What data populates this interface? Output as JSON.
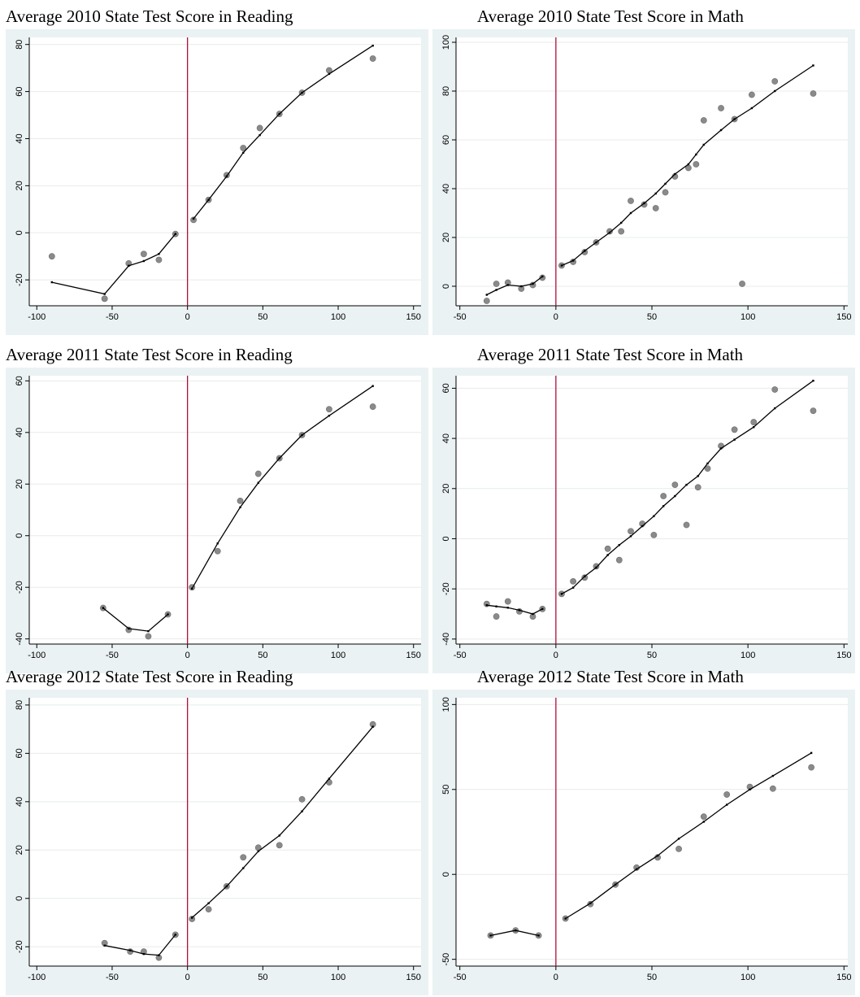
{
  "chart_data": [
    {
      "type": "scatter",
      "title": "Average 2010 State Test Score in Reading",
      "xlim": [
        -105,
        155
      ],
      "ylim": [
        -31,
        83
      ],
      "xticks": [
        -100,
        -50,
        0,
        50,
        100,
        150
      ],
      "yticks": [
        -20,
        0,
        20,
        40,
        60,
        80
      ],
      "cutoff": 0,
      "points": [
        [
          -90,
          -10
        ],
        [
          -55,
          -28
        ],
        [
          -39,
          -13
        ],
        [
          -29,
          -9
        ],
        [
          -19,
          -11.5
        ],
        [
          -8,
          -0.5
        ],
        [
          4,
          5.5
        ],
        [
          14,
          14
        ],
        [
          26,
          24.5
        ],
        [
          37,
          36
        ],
        [
          48,
          44.5
        ],
        [
          61,
          50.5
        ],
        [
          76,
          59.5
        ],
        [
          94,
          69
        ],
        [
          123,
          74
        ]
      ],
      "left_fit": [
        [
          -90,
          -21
        ],
        [
          -55,
          -26
        ],
        [
          -39,
          -14
        ],
        [
          -29,
          -12
        ],
        [
          -19,
          -9
        ],
        [
          -8,
          -0.5
        ]
      ],
      "right_fit": [
        [
          4,
          6
        ],
        [
          14,
          14
        ],
        [
          26,
          24
        ],
        [
          37,
          34
        ],
        [
          48,
          41.5
        ],
        [
          61,
          50.5
        ],
        [
          76,
          59.5
        ],
        [
          94,
          67.5
        ],
        [
          123,
          79.5
        ]
      ]
    },
    {
      "type": "scatter",
      "title": "Average 2010 State Test Score in Math",
      "xlim": [
        -52,
        152
      ],
      "ylim": [
        -8,
        102
      ],
      "xticks": [
        -50,
        0,
        50,
        100,
        150
      ],
      "yticks": [
        0,
        20,
        40,
        60,
        80,
        100
      ],
      "cutoff": 0,
      "points": [
        [
          -36,
          -6
        ],
        [
          -31,
          1
        ],
        [
          -25,
          1.5
        ],
        [
          -18,
          -1
        ],
        [
          -12,
          0.5
        ],
        [
          -7,
          3.5
        ],
        [
          3,
          8.5
        ],
        [
          9,
          10
        ],
        [
          15,
          14
        ],
        [
          21,
          18
        ],
        [
          28,
          22.5
        ],
        [
          34,
          22.5
        ],
        [
          39,
          35
        ],
        [
          46,
          33.5
        ],
        [
          52,
          32
        ],
        [
          57,
          38.5
        ],
        [
          62,
          45
        ],
        [
          69,
          48.5
        ],
        [
          73,
          50
        ],
        [
          77,
          68
        ],
        [
          86,
          73
        ],
        [
          93,
          68.5
        ],
        [
          97,
          1
        ],
        [
          102,
          78.5
        ],
        [
          114,
          84
        ],
        [
          134,
          79
        ]
      ],
      "left_fit": [
        [
          -36,
          -3.5
        ],
        [
          -31,
          -1.5
        ],
        [
          -25,
          0.5
        ],
        [
          -18,
          0
        ],
        [
          -12,
          1
        ],
        [
          -7,
          4
        ]
      ],
      "right_fit": [
        [
          3,
          8.5
        ],
        [
          9,
          10.5
        ],
        [
          15,
          14.5
        ],
        [
          21,
          18
        ],
        [
          28,
          22
        ],
        [
          34,
          26
        ],
        [
          39,
          30
        ],
        [
          46,
          34
        ],
        [
          52,
          38
        ],
        [
          57,
          42
        ],
        [
          62,
          46
        ],
        [
          69,
          50
        ],
        [
          73,
          54
        ],
        [
          77,
          58
        ],
        [
          86,
          64
        ],
        [
          93,
          68.5
        ],
        [
          102,
          73
        ],
        [
          114,
          80
        ],
        [
          134,
          90.5
        ]
      ]
    },
    {
      "type": "scatter",
      "title": "Average 2011 State Test Score in Reading",
      "xlim": [
        -105,
        155
      ],
      "ylim": [
        -42,
        62
      ],
      "xticks": [
        -100,
        -50,
        0,
        50,
        100,
        150
      ],
      "yticks": [
        -40,
        -20,
        0,
        20,
        40,
        60
      ],
      "cutoff": 0,
      "points": [
        [
          -56,
          -28
        ],
        [
          -39,
          -36.5
        ],
        [
          -26,
          -39
        ],
        [
          -13,
          -30.5
        ],
        [
          3,
          -20
        ],
        [
          20,
          -6
        ],
        [
          35,
          13.5
        ],
        [
          47,
          24
        ],
        [
          61,
          30
        ],
        [
          76,
          39
        ],
        [
          94,
          49
        ],
        [
          123,
          50
        ]
      ],
      "left_fit": [
        [
          -56,
          -28
        ],
        [
          -39,
          -36
        ],
        [
          -26,
          -37
        ],
        [
          -13,
          -30.5
        ]
      ],
      "right_fit": [
        [
          3,
          -20.5
        ],
        [
          20,
          -3
        ],
        [
          35,
          11
        ],
        [
          47,
          20.5
        ],
        [
          61,
          30
        ],
        [
          76,
          39
        ],
        [
          94,
          46.5
        ],
        [
          123,
          58
        ]
      ]
    },
    {
      "type": "scatter",
      "title": "Average 2011 State Test Score in Math",
      "xlim": [
        -52,
        152
      ],
      "ylim": [
        -42,
        65
      ],
      "xticks": [
        -50,
        0,
        50,
        100,
        150
      ],
      "yticks": [
        -40,
        -20,
        0,
        20,
        40,
        60
      ],
      "cutoff": 0,
      "points": [
        [
          -36,
          -26
        ],
        [
          -31,
          -31
        ],
        [
          -25,
          -25
        ],
        [
          -19,
          -29
        ],
        [
          -12,
          -31
        ],
        [
          -7,
          -28
        ],
        [
          3,
          -22
        ],
        [
          9,
          -17
        ],
        [
          15,
          -15.5
        ],
        [
          21,
          -11
        ],
        [
          27,
          -4
        ],
        [
          33,
          -8.5
        ],
        [
          39,
          3
        ],
        [
          45,
          6
        ],
        [
          51,
          1.5
        ],
        [
          56,
          17
        ],
        [
          62,
          21.5
        ],
        [
          68,
          5.5
        ],
        [
          74,
          20.5
        ],
        [
          79,
          28
        ],
        [
          86,
          37
        ],
        [
          93,
          43.5
        ],
        [
          103,
          46.5
        ],
        [
          114,
          59.5
        ],
        [
          134,
          51
        ]
      ],
      "left_fit": [
        [
          -36,
          -26.5
        ],
        [
          -31,
          -27
        ],
        [
          -25,
          -27.5
        ],
        [
          -19,
          -28.5
        ],
        [
          -12,
          -30
        ],
        [
          -7,
          -28
        ]
      ],
      "right_fit": [
        [
          3,
          -22
        ],
        [
          9,
          -19.5
        ],
        [
          15,
          -15
        ],
        [
          21,
          -11.5
        ],
        [
          27,
          -6.5
        ],
        [
          33,
          -2.5
        ],
        [
          39,
          1
        ],
        [
          45,
          5
        ],
        [
          51,
          9
        ],
        [
          56,
          13
        ],
        [
          62,
          17
        ],
        [
          68,
          21.5
        ],
        [
          74,
          25
        ],
        [
          79,
          30
        ],
        [
          86,
          36
        ],
        [
          93,
          39.5
        ],
        [
          103,
          44.5
        ],
        [
          114,
          52
        ],
        [
          134,
          63
        ]
      ]
    },
    {
      "type": "scatter",
      "title": "Average 2012 State Test Score in Reading",
      "xlim": [
        -105,
        155
      ],
      "ylim": [
        -28,
        83
      ],
      "xticks": [
        -100,
        -50,
        0,
        50,
        100,
        150
      ],
      "yticks": [
        -20,
        0,
        20,
        40,
        60,
        80
      ],
      "cutoff": 0,
      "points": [
        [
          -55,
          -18.5
        ],
        [
          -38,
          -22
        ],
        [
          -29,
          -22
        ],
        [
          -19,
          -24.5
        ],
        [
          -8,
          -15
        ],
        [
          3,
          -8.5
        ],
        [
          14,
          -4.5
        ],
        [
          26,
          5
        ],
        [
          37,
          17
        ],
        [
          47,
          21
        ],
        [
          61,
          22
        ],
        [
          76,
          41
        ],
        [
          94,
          48
        ],
        [
          123,
          72
        ]
      ],
      "left_fit": [
        [
          -55,
          -19.5
        ],
        [
          -38,
          -21.5
        ],
        [
          -29,
          -23
        ],
        [
          -19,
          -23.5
        ],
        [
          -8,
          -15
        ]
      ],
      "right_fit": [
        [
          3,
          -8
        ],
        [
          14,
          -2
        ],
        [
          26,
          5
        ],
        [
          37,
          12.5
        ],
        [
          47,
          19.5
        ],
        [
          61,
          26
        ],
        [
          76,
          36
        ],
        [
          94,
          49.5
        ],
        [
          123,
          71
        ]
      ]
    },
    {
      "type": "scatter",
      "title": "Average 2012 State Test Score in Math",
      "xlim": [
        -52,
        152
      ],
      "ylim": [
        -54,
        104
      ],
      "xticks": [
        -50,
        0,
        50,
        100,
        150
      ],
      "yticks": [
        -50,
        0,
        50,
        100
      ],
      "cutoff": 0,
      "points": [
        [
          -34,
          -36
        ],
        [
          -21,
          -33
        ],
        [
          -9,
          -36
        ],
        [
          5,
          -26
        ],
        [
          18,
          -17.5
        ],
        [
          31,
          -6
        ],
        [
          42,
          4
        ],
        [
          53,
          10
        ],
        [
          64,
          15
        ],
        [
          77,
          34
        ],
        [
          89,
          47
        ],
        [
          101,
          51.5
        ],
        [
          113,
          50.5
        ],
        [
          133,
          63
        ]
      ],
      "left_fit": [
        [
          -34,
          -36
        ],
        [
          -21,
          -33
        ],
        [
          -9,
          -36
        ]
      ],
      "right_fit": [
        [
          5,
          -26
        ],
        [
          18,
          -17
        ],
        [
          31,
          -6
        ],
        [
          42,
          3
        ],
        [
          53,
          11
        ],
        [
          64,
          21
        ],
        [
          77,
          31
        ],
        [
          89,
          41
        ],
        [
          101,
          50
        ],
        [
          113,
          58
        ],
        [
          133,
          71.5
        ]
      ]
    }
  ]
}
